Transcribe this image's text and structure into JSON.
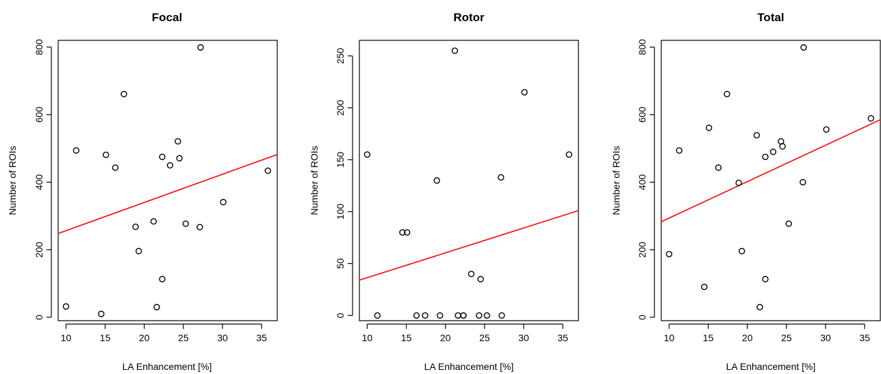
{
  "chart_data": [
    {
      "type": "scatter",
      "title": "Focal",
      "xlabel": "LA Enhancement [%]",
      "ylabel": "Number of ROIs",
      "xlim": [
        9,
        37
      ],
      "ylim": [
        -10,
        820
      ],
      "xticks": [
        10,
        15,
        20,
        25,
        30,
        35
      ],
      "yticks": [
        0,
        200,
        400,
        600,
        800
      ],
      "points": [
        {
          "x": 10.0,
          "y": 32
        },
        {
          "x": 11.3,
          "y": 494
        },
        {
          "x": 14.5,
          "y": 10
        },
        {
          "x": 15.1,
          "y": 481
        },
        {
          "x": 16.3,
          "y": 443
        },
        {
          "x": 17.4,
          "y": 661
        },
        {
          "x": 18.9,
          "y": 268
        },
        {
          "x": 19.3,
          "y": 196
        },
        {
          "x": 21.2,
          "y": 284
        },
        {
          "x": 21.6,
          "y": 30
        },
        {
          "x": 22.3,
          "y": 113
        },
        {
          "x": 22.3,
          "y": 475
        },
        {
          "x": 23.3,
          "y": 450
        },
        {
          "x": 24.3,
          "y": 521
        },
        {
          "x": 24.5,
          "y": 471
        },
        {
          "x": 25.3,
          "y": 277
        },
        {
          "x": 27.1,
          "y": 267
        },
        {
          "x": 27.2,
          "y": 799
        },
        {
          "x": 30.1,
          "y": 341
        },
        {
          "x": 35.8,
          "y": 434
        }
      ],
      "fit_line": {
        "x": [
          9,
          37
        ],
        "y": [
          248,
          482
        ],
        "color": "#ff0000"
      }
    },
    {
      "type": "scatter",
      "title": "Rotor",
      "xlabel": "LA Enhancement [%]",
      "ylabel": "Number of ROIs",
      "xlim": [
        9,
        37
      ],
      "ylim": [
        -5,
        265
      ],
      "xticks": [
        10,
        15,
        20,
        25,
        30,
        35
      ],
      "yticks": [
        0,
        50,
        100,
        150,
        200,
        250
      ],
      "points": [
        {
          "x": 10.0,
          "y": 155
        },
        {
          "x": 11.3,
          "y": 0
        },
        {
          "x": 14.5,
          "y": 80
        },
        {
          "x": 15.1,
          "y": 80
        },
        {
          "x": 16.3,
          "y": 0
        },
        {
          "x": 17.4,
          "y": 0
        },
        {
          "x": 18.9,
          "y": 130
        },
        {
          "x": 19.3,
          "y": 0
        },
        {
          "x": 21.2,
          "y": 255
        },
        {
          "x": 21.6,
          "y": 0
        },
        {
          "x": 22.3,
          "y": 0
        },
        {
          "x": 22.3,
          "y": 0
        },
        {
          "x": 23.3,
          "y": 40
        },
        {
          "x": 24.3,
          "y": 0
        },
        {
          "x": 24.5,
          "y": 35
        },
        {
          "x": 25.3,
          "y": 0
        },
        {
          "x": 27.1,
          "y": 133
        },
        {
          "x": 27.2,
          "y": 0
        },
        {
          "x": 30.1,
          "y": 215
        },
        {
          "x": 35.8,
          "y": 155
        }
      ],
      "fit_line": {
        "x": [
          9,
          37
        ],
        "y": [
          34,
          101
        ],
        "color": "#ff0000"
      }
    },
    {
      "type": "scatter",
      "title": "Total",
      "xlabel": "LA Enhancement [%]",
      "ylabel": "Number of ROIs",
      "xlim": [
        9,
        37
      ],
      "ylim": [
        -10,
        820
      ],
      "xticks": [
        10,
        15,
        20,
        25,
        30,
        35
      ],
      "yticks": [
        0,
        200,
        400,
        600,
        800
      ],
      "points": [
        {
          "x": 10.0,
          "y": 187
        },
        {
          "x": 11.3,
          "y": 494
        },
        {
          "x": 14.5,
          "y": 90
        },
        {
          "x": 15.1,
          "y": 561
        },
        {
          "x": 16.3,
          "y": 443
        },
        {
          "x": 17.4,
          "y": 661
        },
        {
          "x": 18.9,
          "y": 398
        },
        {
          "x": 19.3,
          "y": 196
        },
        {
          "x": 21.2,
          "y": 539
        },
        {
          "x": 21.6,
          "y": 30
        },
        {
          "x": 22.3,
          "y": 113
        },
        {
          "x": 22.3,
          "y": 475
        },
        {
          "x": 23.3,
          "y": 490
        },
        {
          "x": 24.3,
          "y": 521
        },
        {
          "x": 24.5,
          "y": 506
        },
        {
          "x": 25.3,
          "y": 277
        },
        {
          "x": 27.1,
          "y": 400
        },
        {
          "x": 27.2,
          "y": 799
        },
        {
          "x": 30.1,
          "y": 556
        },
        {
          "x": 35.8,
          "y": 589
        }
      ],
      "fit_line": {
        "x": [
          9,
          37
        ],
        "y": [
          283,
          585
        ],
        "color": "#ff0000"
      }
    }
  ]
}
